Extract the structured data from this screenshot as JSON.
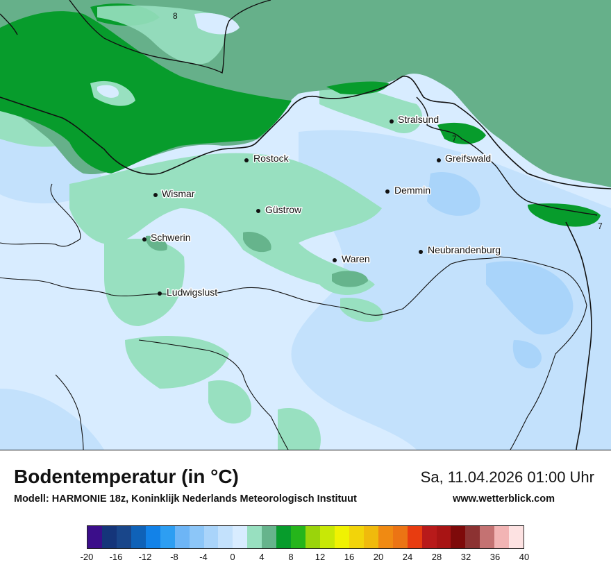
{
  "title": "Bodentemperatur (in °C)",
  "model": "Modell: HARMONIE 18z, Koninklijk Nederlands Meteorologisch Instituut",
  "datetime": "Sa, 11.04.2026 01:00 Uhr",
  "website": "www.wetterblick.com",
  "cities": [
    {
      "name": "Stralsund"
    },
    {
      "name": "Greifswald"
    },
    {
      "name": "Rostock"
    },
    {
      "name": "Wismar"
    },
    {
      "name": "Demmin"
    },
    {
      "name": "Güstrow"
    },
    {
      "name": "Schwerin"
    },
    {
      "name": "Neubrandenburg"
    },
    {
      "name": "Waren"
    },
    {
      "name": "Ludwigslust"
    }
  ],
  "contour_labels": [
    "8",
    "7",
    "7"
  ],
  "colorbar": {
    "colors": [
      "#3b0e8a",
      "#15357a",
      "#19468a",
      "#0f62b8",
      "#1282e8",
      "#2d9ef2",
      "#6db5f6",
      "#8cc6f8",
      "#a9d4fa",
      "#c3e1fc",
      "#d8ecff",
      "#98e0c0",
      "#66b48c",
      "#079c2c",
      "#25b51b",
      "#9ad40b",
      "#c8e806",
      "#f0f202",
      "#f2d40a",
      "#f0ba0c",
      "#f08a12",
      "#ec7414",
      "#e83c10",
      "#b81a1a",
      "#a81414",
      "#7e0a0a",
      "#8c3232",
      "#c47272",
      "#f2b4b4",
      "#fde2e2"
    ],
    "ticks": [
      "-20",
      "-16",
      "-12",
      "-8",
      "-4",
      "0",
      "4",
      "8",
      "12",
      "16",
      "20",
      "24",
      "28",
      "32",
      "36",
      "40"
    ]
  },
  "field_colors": {
    "sea": "#66b08a",
    "coastal_green": "#079c2c",
    "light_green": "#98e0c0",
    "pale_blue": "#d8ecff",
    "light_blue": "#c3e1fc",
    "blue": "#a9d4fa"
  }
}
